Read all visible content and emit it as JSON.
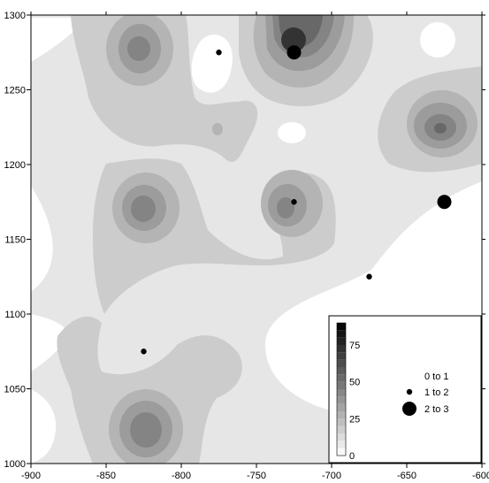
{
  "chart_data": {
    "type": "contour",
    "x_ticks": [
      "-900",
      "-850",
      "-800",
      "-750",
      "-700",
      "-650",
      "-600"
    ],
    "y_ticks": [
      "1000",
      "1050",
      "1100",
      "1150",
      "1200",
      "1250",
      "1300"
    ],
    "xlim": [
      -900,
      -600
    ],
    "ylim": [
      1000,
      1300
    ],
    "grid": false,
    "contour_levels": [
      0,
      5,
      10,
      15,
      20,
      25,
      30,
      35,
      40,
      45,
      50,
      55,
      60,
      65,
      70,
      75,
      80,
      85,
      90
    ],
    "colorbar": {
      "tick_labels": [
        "75",
        "50",
        "25",
        "0"
      ],
      "tick_values": [
        75,
        50,
        25,
        0
      ],
      "range": [
        0,
        90
      ],
      "placement": "inset bottom-right"
    },
    "fill_colors": {
      "band_0_5": "#ffffff",
      "band_5_15": "#e6e6e6",
      "band_15_25": "#cccccc",
      "band_25_35": "#b4b4b4",
      "band_35_45": "#9c9c9c",
      "band_45_55": "#848484",
      "band_55_70": "#686868",
      "band_70_90": "#333333"
    },
    "point_size_legend": [
      {
        "label": "0 to 1",
        "size": "none"
      },
      {
        "label": "1 to 2",
        "size": "small"
      },
      {
        "label": "2 to 3",
        "size": "large"
      }
    ],
    "points": [
      {
        "x": -775,
        "y": 1275,
        "class": "1 to 2"
      },
      {
        "x": -725,
        "y": 1275,
        "class": "2 to 3"
      },
      {
        "x": -725,
        "y": 1175,
        "class": "1 to 2"
      },
      {
        "x": -625,
        "y": 1175,
        "class": "2 to 3"
      },
      {
        "x": -675,
        "y": 1125,
        "class": "1 to 2"
      },
      {
        "x": -825,
        "y": 1075,
        "class": "1 to 2"
      }
    ]
  }
}
